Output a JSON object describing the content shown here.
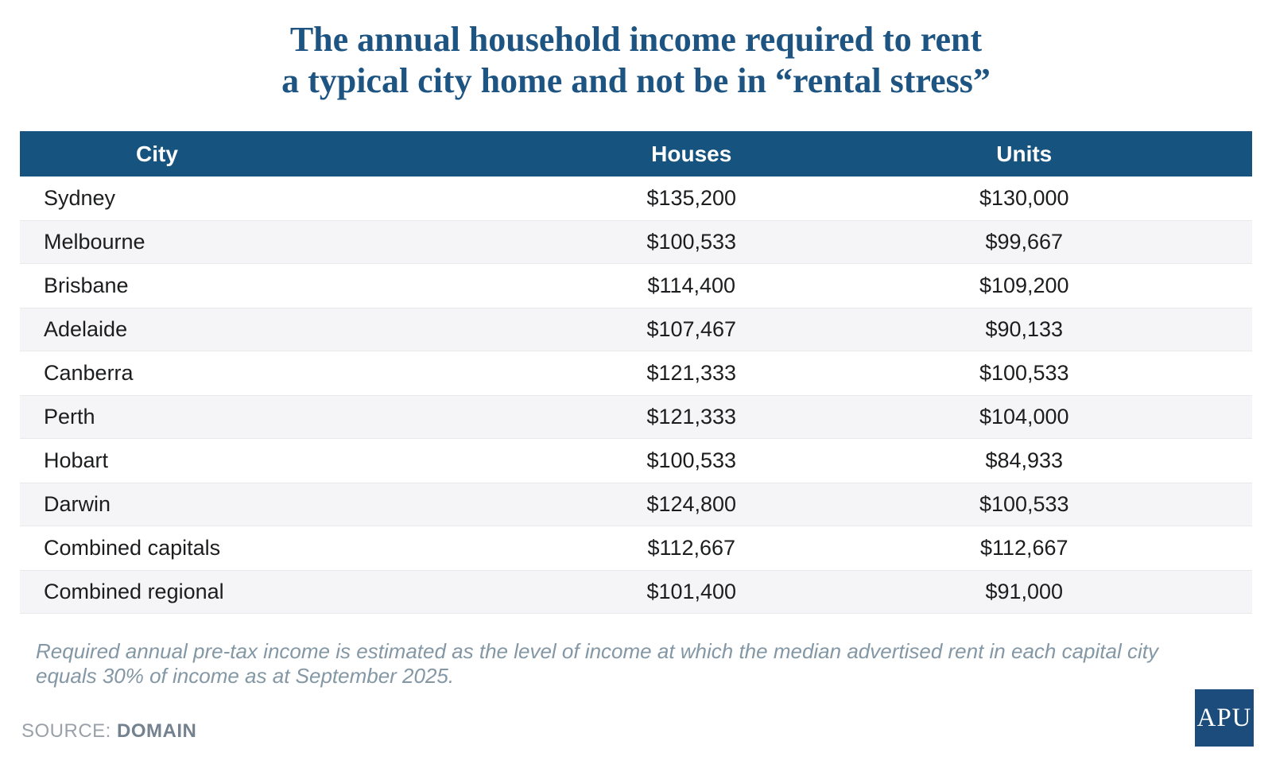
{
  "title": {
    "line1": "The annual household income required to rent",
    "line2": "a typical city home and not be in “rental stress”"
  },
  "footnote": "Required annual pre-tax income is estimated as the level of income at which the median advertised rent in each capital city equals 30% of income as at September 2025.",
  "source": {
    "label": "SOURCE:",
    "value": "DOMAIN"
  },
  "logo": {
    "text": "APU"
  },
  "colors": {
    "header_bg": "#16537f",
    "title_text": "#1e5482",
    "stripe_bg": "#f5f4f6",
    "body_text": "#1c1d1f",
    "footnote_text": "#8397a5",
    "logo_bg": "#1b4c7c"
  },
  "chart_data": {
    "type": "table",
    "title": "The annual household income required to rent a typical city home and not be in “rental stress”",
    "columns": [
      "City",
      "Houses",
      "Units"
    ],
    "rows": [
      {
        "city": "Sydney",
        "houses": "$135,200",
        "units": "$130,000",
        "houses_value": 135200,
        "units_value": 130000
      },
      {
        "city": "Melbourne",
        "houses": "$100,533",
        "units": "$99,667",
        "houses_value": 100533,
        "units_value": 99667
      },
      {
        "city": "Brisbane",
        "houses": "$114,400",
        "units": "$109,200",
        "houses_value": 114400,
        "units_value": 109200
      },
      {
        "city": "Adelaide",
        "houses": "$107,467",
        "units": "$90,133",
        "houses_value": 107467,
        "units_value": 90133
      },
      {
        "city": "Canberra",
        "houses": "$121,333",
        "units": "$100,533",
        "houses_value": 121333,
        "units_value": 100533
      },
      {
        "city": "Perth",
        "houses": "$121,333",
        "units": "$104,000",
        "houses_value": 121333,
        "units_value": 104000
      },
      {
        "city": "Hobart",
        "houses": "$100,533",
        "units": "$84,933",
        "houses_value": 100533,
        "units_value": 84933
      },
      {
        "city": "Darwin",
        "houses": "$124,800",
        "units": "$100,533",
        "houses_value": 124800,
        "units_value": 100533
      },
      {
        "city": "Combined capitals",
        "houses": "$112,667",
        "units": "$112,667",
        "houses_value": 112667,
        "units_value": 112667
      },
      {
        "city": "Combined regional",
        "houses": "$101,400",
        "units": "$91,000",
        "houses_value": 101400,
        "units_value": 91000
      }
    ],
    "footnote": "Required annual pre-tax income is estimated as the level of income at which the median advertised rent in each capital city equals 30% of income as at September 2025.",
    "source": "DOMAIN",
    "layout": {
      "stripe_rows": "even",
      "city_align": "left",
      "value_align": "center"
    }
  }
}
